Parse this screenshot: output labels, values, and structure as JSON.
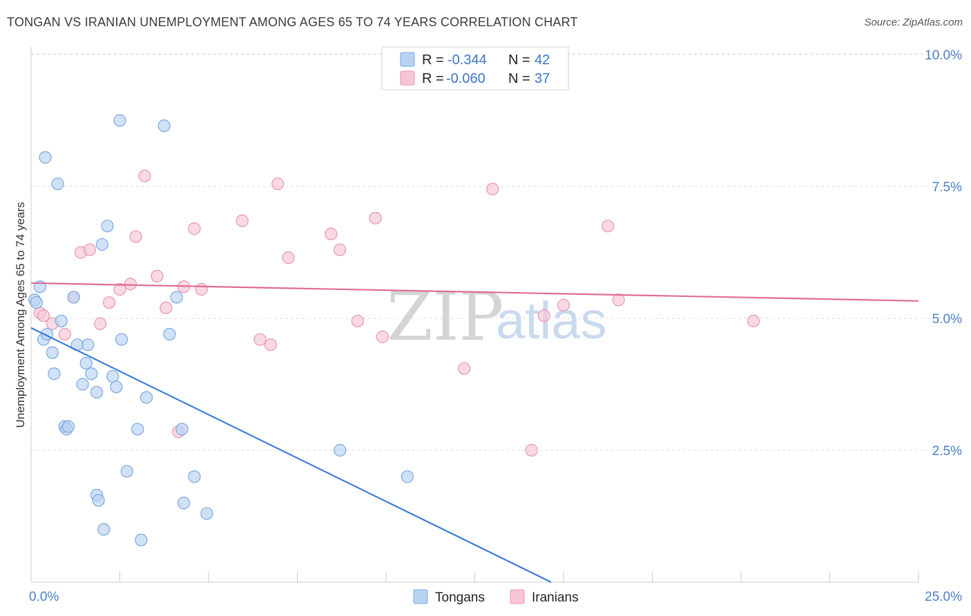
{
  "header": {
    "title": "TONGAN VS IRANIAN UNEMPLOYMENT AMONG AGES 65 TO 74 YEARS CORRELATION CHART",
    "source": "Source: ZipAtlas.com"
  },
  "watermark": {
    "zip": "ZIP",
    "atlas": "atlas"
  },
  "legend": {
    "rows": [
      {
        "r_label": "R = ",
        "r_value": "-0.344",
        "n_label": "N = ",
        "n_value": "42"
      },
      {
        "r_label": "R = ",
        "r_value": "-0.060",
        "n_label": "N = ",
        "n_value": "37"
      }
    ]
  },
  "colors": {
    "tongans_fill": "#b8d2f3",
    "tongans_stroke": "#7aa7e0",
    "tongans_line": "#3b7dd8",
    "iranians_fill": "#f7c5d5",
    "iranians_stroke": "#e895b0",
    "iranians_line": "#e06a94"
  },
  "chart_data": {
    "type": "scatter",
    "title": "TONGAN VS IRANIAN UNEMPLOYMENT AMONG AGES 65 TO 74 YEARS CORRELATION CHART",
    "xlabel": "",
    "ylabel": "Unemployment Among Ages 65 to 74 years",
    "xlim": [
      0,
      25
    ],
    "ylim": [
      0,
      10
    ],
    "x_tick_labels": [
      "0.0%",
      "25.0%"
    ],
    "y_ticks": [
      2.5,
      5.0,
      7.5,
      10.0
    ],
    "y_tick_labels": [
      "2.5%",
      "5.0%",
      "7.5%",
      "10.0%"
    ],
    "grid": true,
    "legend_position": "top-center",
    "series": [
      {
        "name": "Tongans",
        "r": -0.344,
        "n": 42,
        "trend": {
          "x0": 0,
          "y0": 4.82,
          "x1": 14.65,
          "y1": 0
        },
        "points": [
          [
            0.1,
            5.35
          ],
          [
            0.15,
            5.3
          ],
          [
            0.25,
            5.6
          ],
          [
            0.35,
            4.6
          ],
          [
            0.4,
            8.05
          ],
          [
            0.45,
            4.7
          ],
          [
            0.6,
            4.35
          ],
          [
            0.65,
            3.95
          ],
          [
            0.75,
            7.55
          ],
          [
            0.85,
            4.95
          ],
          [
            0.95,
            2.95
          ],
          [
            1.0,
            2.9
          ],
          [
            1.05,
            2.95
          ],
          [
            1.2,
            5.4
          ],
          [
            1.3,
            4.5
          ],
          [
            1.45,
            3.75
          ],
          [
            1.55,
            4.15
          ],
          [
            1.6,
            4.5
          ],
          [
            1.7,
            3.95
          ],
          [
            1.85,
            3.6
          ],
          [
            1.85,
            1.65
          ],
          [
            1.9,
            1.55
          ],
          [
            2.0,
            6.4
          ],
          [
            2.05,
            1.0
          ],
          [
            2.15,
            6.75
          ],
          [
            2.3,
            3.9
          ],
          [
            2.4,
            3.7
          ],
          [
            2.5,
            8.75
          ],
          [
            2.55,
            4.6
          ],
          [
            2.7,
            2.1
          ],
          [
            3.0,
            2.9
          ],
          [
            3.1,
            0.8
          ],
          [
            3.25,
            3.5
          ],
          [
            3.75,
            8.65
          ],
          [
            3.9,
            4.7
          ],
          [
            4.1,
            5.4
          ],
          [
            4.25,
            2.9
          ],
          [
            4.3,
            1.5
          ],
          [
            4.6,
            2.0
          ],
          [
            4.95,
            1.3
          ],
          [
            8.7,
            2.5
          ],
          [
            10.6,
            2.0
          ]
        ]
      },
      {
        "name": "Iranians",
        "r": -0.06,
        "n": 37,
        "trend": {
          "x0": 0,
          "y0": 5.67,
          "x1": 25,
          "y1": 5.33
        },
        "points": [
          [
            0.25,
            5.1
          ],
          [
            0.35,
            5.05
          ],
          [
            0.6,
            4.9
          ],
          [
            0.95,
            4.7
          ],
          [
            1.2,
            5.4
          ],
          [
            1.4,
            6.25
          ],
          [
            1.65,
            6.3
          ],
          [
            1.95,
            4.9
          ],
          [
            2.2,
            5.3
          ],
          [
            2.5,
            5.55
          ],
          [
            2.8,
            5.65
          ],
          [
            2.95,
            6.55
          ],
          [
            3.2,
            7.7
          ],
          [
            3.55,
            5.8
          ],
          [
            3.8,
            5.2
          ],
          [
            4.15,
            2.85
          ],
          [
            4.3,
            5.6
          ],
          [
            4.6,
            6.7
          ],
          [
            4.8,
            5.55
          ],
          [
            5.95,
            6.85
          ],
          [
            6.45,
            4.6
          ],
          [
            6.75,
            4.5
          ],
          [
            6.95,
            7.55
          ],
          [
            7.25,
            6.15
          ],
          [
            8.45,
            6.6
          ],
          [
            8.7,
            6.3
          ],
          [
            9.2,
            4.95
          ],
          [
            9.7,
            6.9
          ],
          [
            9.9,
            4.65
          ],
          [
            12.2,
            4.05
          ],
          [
            13.0,
            7.45
          ],
          [
            14.1,
            2.5
          ],
          [
            14.45,
            5.05
          ],
          [
            15.0,
            5.25
          ],
          [
            16.25,
            6.75
          ],
          [
            16.55,
            5.35
          ],
          [
            20.35,
            4.95
          ]
        ]
      }
    ]
  },
  "bottom_legend": {
    "items": [
      "Tongans",
      "Iranians"
    ]
  }
}
